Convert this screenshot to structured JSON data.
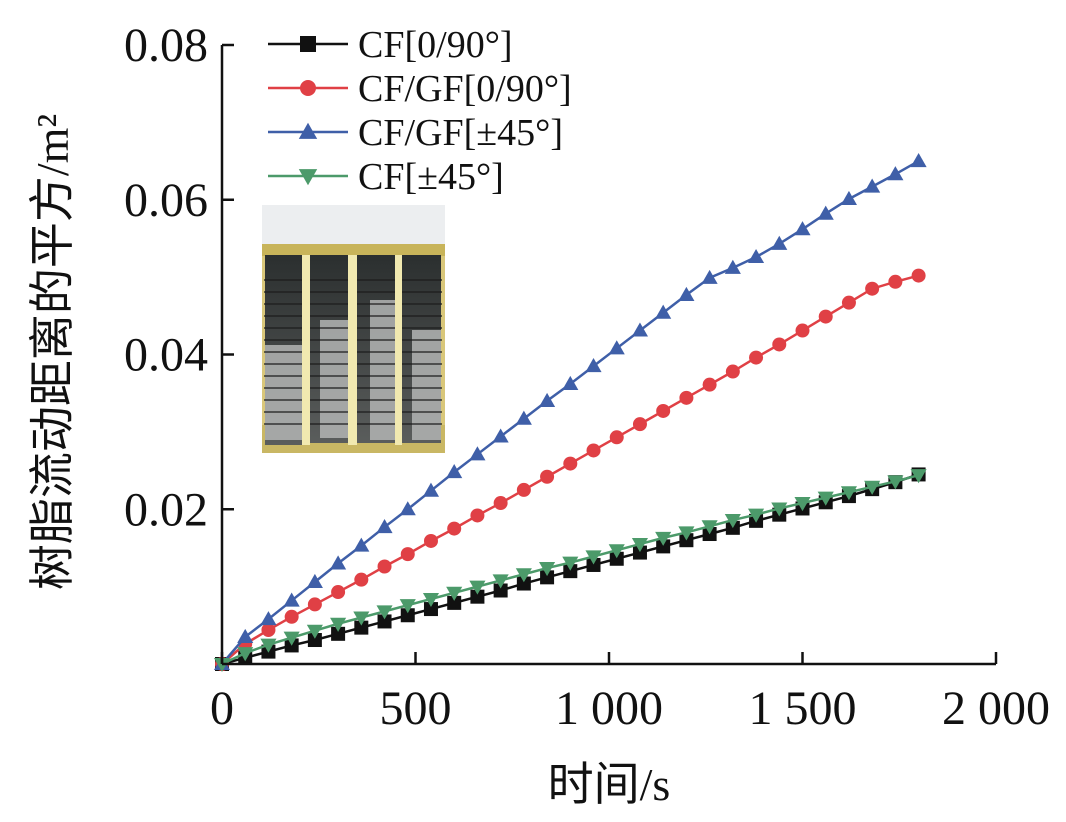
{
  "chart_data": {
    "type": "line",
    "xlabel": "时间/s",
    "ylabel": "树脂流动距离的平方/m²",
    "xlim": [
      0,
      2000
    ],
    "ylim": [
      0,
      0.08
    ],
    "x_ticks": [
      0,
      500,
      1000,
      1500,
      2000
    ],
    "x_tick_labels": [
      "0",
      "500",
      "1 000",
      "1 500",
      "2 000"
    ],
    "y_ticks": [
      0.02,
      0.04,
      0.06,
      0.08
    ],
    "y_tick_labels": [
      "0.02",
      "0.04",
      "0.06",
      "0.08"
    ],
    "grid": false,
    "legend": "top-left",
    "inset": "photo of four resin-infused fabric specimens with marked flow front lines",
    "series": [
      {
        "name": "CF[0/90°]",
        "color": "#111111",
        "marker": "square",
        "x": [
          0,
          60,
          120,
          180,
          240,
          300,
          360,
          420,
          480,
          540,
          600,
          660,
          720,
          780,
          840,
          900,
          960,
          1020,
          1080,
          1140,
          1200,
          1260,
          1320,
          1380,
          1440,
          1500,
          1560,
          1620,
          1680,
          1740,
          1800
        ],
        "values": [
          0,
          0.0008,
          0.0016,
          0.0024,
          0.0031,
          0.0039,
          0.0047,
          0.0055,
          0.0063,
          0.0071,
          0.0079,
          0.0087,
          0.0095,
          0.0104,
          0.0112,
          0.012,
          0.0128,
          0.0136,
          0.0144,
          0.0152,
          0.016,
          0.0168,
          0.0176,
          0.0185,
          0.0193,
          0.0201,
          0.0209,
          0.0217,
          0.0226,
          0.0235,
          0.0245
        ]
      },
      {
        "name": "CF/GF[0/90°]",
        "color": "#e04045",
        "marker": "circle",
        "x": [
          0,
          60,
          120,
          180,
          240,
          300,
          360,
          420,
          480,
          540,
          600,
          660,
          720,
          780,
          840,
          900,
          960,
          1020,
          1080,
          1140,
          1200,
          1260,
          1320,
          1380,
          1440,
          1500,
          1560,
          1620,
          1680,
          1740,
          1800
        ],
        "values": [
          0,
          0.0026,
          0.0044,
          0.0061,
          0.0077,
          0.0093,
          0.0109,
          0.0126,
          0.0142,
          0.0159,
          0.0175,
          0.0192,
          0.0208,
          0.0225,
          0.0242,
          0.0259,
          0.0276,
          0.0293,
          0.031,
          0.0327,
          0.0344,
          0.0361,
          0.0378,
          0.0396,
          0.0413,
          0.0431,
          0.0449,
          0.0467,
          0.0485,
          0.0494,
          0.0502
        ]
      },
      {
        "name": "CF/GF[±45°]",
        "color": "#3f5fa8",
        "marker": "triangle-up",
        "x": [
          0,
          60,
          120,
          180,
          240,
          300,
          360,
          420,
          480,
          540,
          600,
          660,
          720,
          780,
          840,
          900,
          960,
          1020,
          1080,
          1140,
          1200,
          1260,
          1320,
          1380,
          1440,
          1500,
          1560,
          1620,
          1680,
          1740,
          1800
        ],
        "values": [
          0,
          0.0035,
          0.0058,
          0.0082,
          0.0106,
          0.013,
          0.0153,
          0.0177,
          0.02,
          0.0224,
          0.0248,
          0.0271,
          0.0294,
          0.0317,
          0.034,
          0.0362,
          0.0385,
          0.0408,
          0.0431,
          0.0454,
          0.0477,
          0.0499,
          0.0512,
          0.0526,
          0.0543,
          0.0562,
          0.0582,
          0.0601,
          0.0617,
          0.0633,
          0.065
        ]
      },
      {
        "name": "CF[±45°]",
        "color": "#4c9a6a",
        "marker": "triangle-down",
        "x": [
          0,
          60,
          120,
          180,
          240,
          300,
          360,
          420,
          480,
          540,
          600,
          660,
          720,
          780,
          840,
          900,
          960,
          1020,
          1080,
          1140,
          1200,
          1260,
          1320,
          1380,
          1440,
          1500,
          1560,
          1620,
          1680,
          1740,
          1800
        ],
        "values": [
          0,
          0.0014,
          0.0025,
          0.0034,
          0.0043,
          0.0052,
          0.006,
          0.0068,
          0.0076,
          0.0084,
          0.0092,
          0.01,
          0.0108,
          0.0116,
          0.0124,
          0.0131,
          0.0139,
          0.0147,
          0.0155,
          0.0163,
          0.017,
          0.0178,
          0.0186,
          0.0193,
          0.0201,
          0.0208,
          0.0215,
          0.0222,
          0.0229,
          0.0236,
          0.0244
        ]
      }
    ]
  }
}
